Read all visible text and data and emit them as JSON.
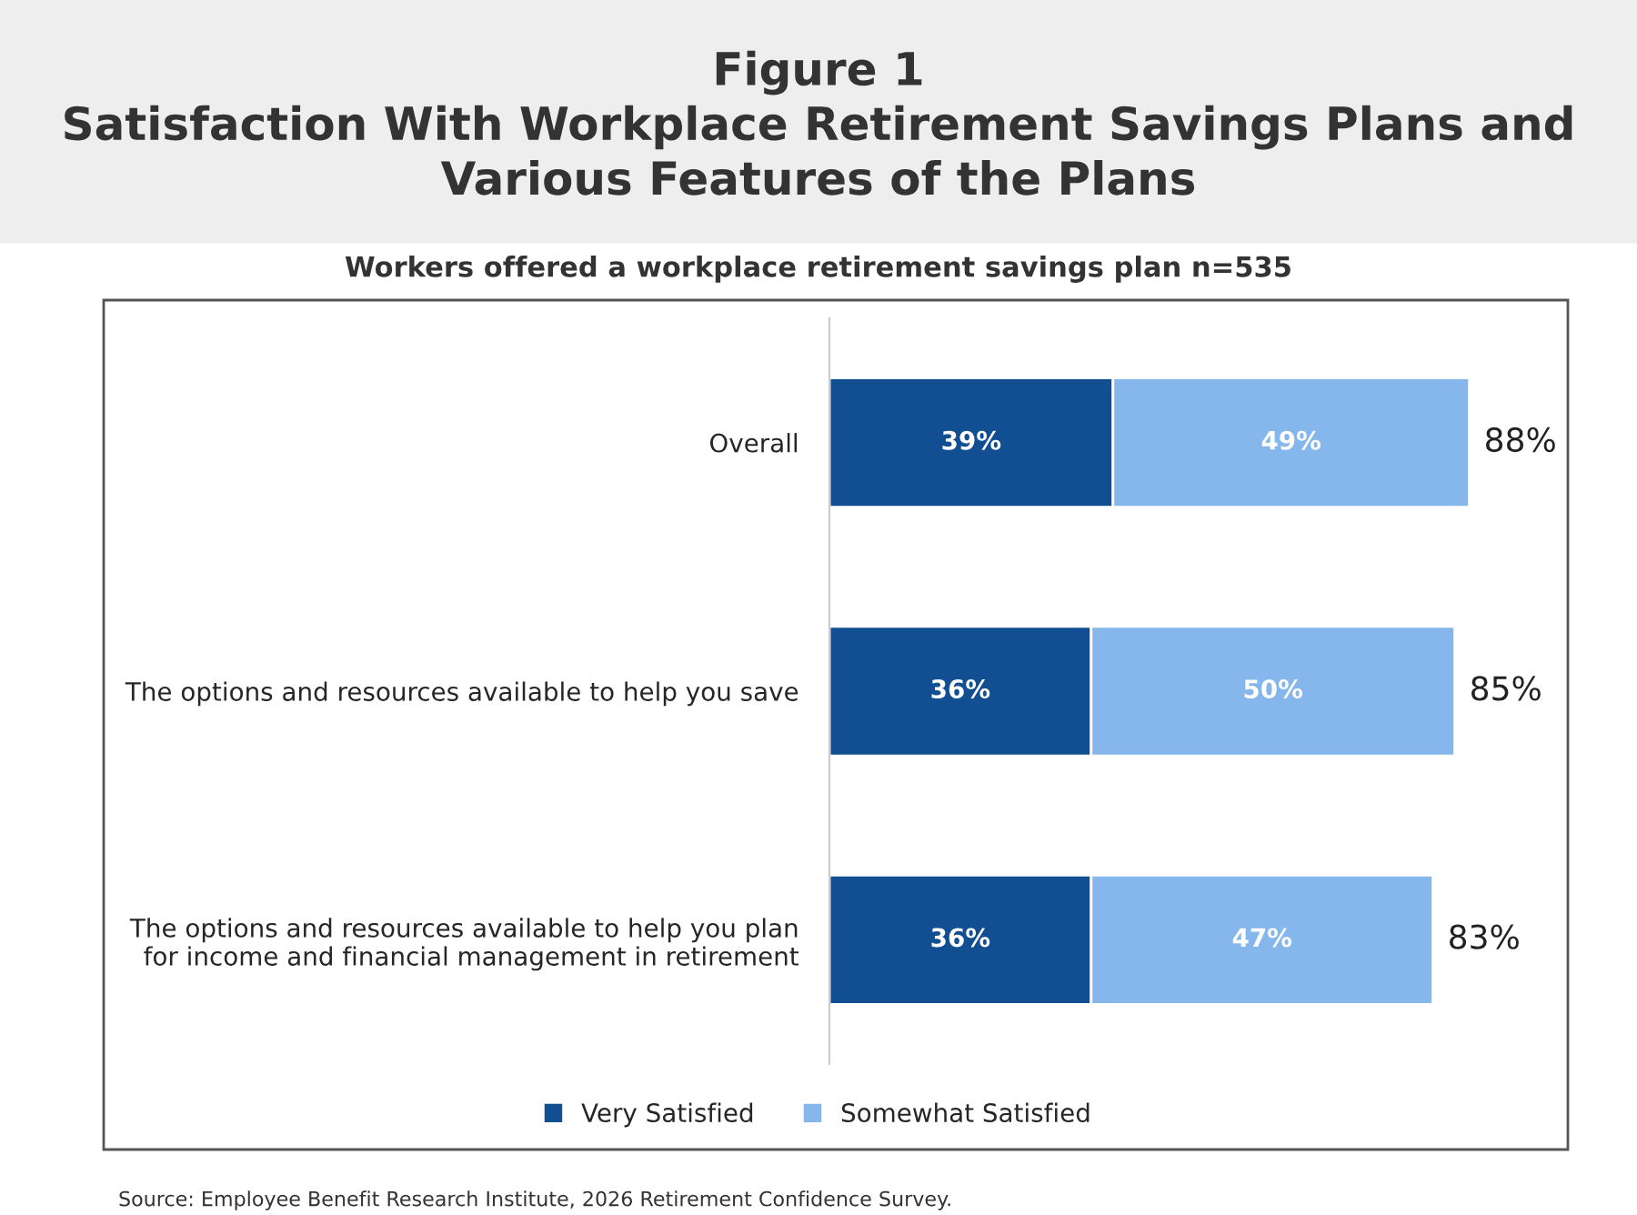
{
  "chart_data": {
    "type": "bar",
    "orientation": "horizontal",
    "stacked": true,
    "title": "Figure 1\nSatisfaction With Workplace Retirement Savings Plans and\nVarious Features of the Plans",
    "subtitle": "Workers offered a workplace retirement savings plan n=535",
    "categories": [
      "Overall",
      "The options and resources available to help you save",
      "The options and resources available to help you plan\nfor income and financial management in retirement"
    ],
    "series": [
      {
        "name": "Very Satisfied",
        "color": "#114e92",
        "values": [
          39,
          36,
          36
        ],
        "value_labels": [
          "39%",
          "36%",
          "36%"
        ]
      },
      {
        "name": "Somewhat Satisfied",
        "color": "#85b6ec",
        "values": [
          49,
          50,
          47
        ],
        "value_labels": [
          "49%",
          "50%",
          "47%"
        ]
      }
    ],
    "totals": [
      "88%",
      "85%",
      "83%"
    ],
    "legend": "bottom",
    "grid": false,
    "annotations": [
      "Source: Employee Benefit Research Institute, 2026 Retirement Confidence Survey."
    ]
  }
}
